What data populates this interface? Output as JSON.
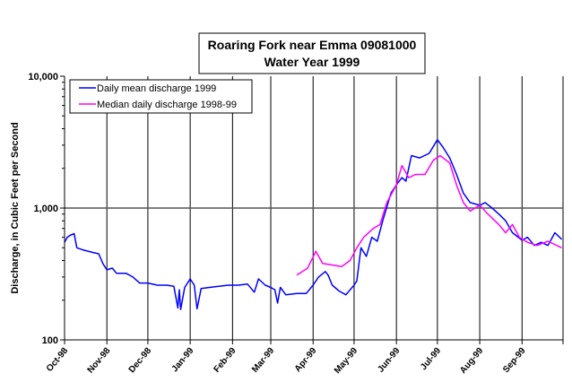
{
  "chart_data": {
    "type": "line",
    "title": "Roaring Fork near Emma 09081000",
    "subtitle": "Water Year 1999",
    "xlabel": "",
    "ylabel": "Discharge, in Cubic Feet per Second",
    "yscale": "log",
    "ylim": [
      100,
      10000
    ],
    "xlim": [
      "1998-10-01",
      "1999-09-30"
    ],
    "ytick_labels": [
      "100",
      "1,000",
      "10,000"
    ],
    "yticks": [
      100,
      1000,
      10000
    ],
    "xtick_labels": [
      "Oct-98",
      "Nov-98",
      "Dec-98",
      "Jan-99",
      "Feb-99",
      "Mar-99",
      "Apr-99",
      "May-99",
      "Jun-99",
      "Jul-99",
      "Aug-99",
      "Sep-99"
    ],
    "xticks": [
      "1998-10-01",
      "1998-11-01",
      "1998-12-01",
      "1999-01-01",
      "1999-02-01",
      "1999-03-01",
      "1999-04-01",
      "1999-05-01",
      "1999-06-01",
      "1999-07-01",
      "1999-08-01",
      "1999-09-01"
    ],
    "grid": {
      "vertical": true,
      "horizontal_major": true
    },
    "legend_position": "top-left",
    "series": [
      {
        "name": "Daily mean discharge 1999",
        "color": "#0000ff",
        "points": [
          [
            "1998-10-01",
            550
          ],
          [
            "1998-10-03",
            600
          ],
          [
            "1998-10-05",
            620
          ],
          [
            "1998-10-08",
            640
          ],
          [
            "1998-10-10",
            500
          ],
          [
            "1998-10-15",
            480
          ],
          [
            "1998-10-22",
            460
          ],
          [
            "1998-10-26",
            450
          ],
          [
            "1998-10-29",
            380
          ],
          [
            "1998-11-01",
            340
          ],
          [
            "1998-11-05",
            350
          ],
          [
            "1998-11-08",
            320
          ],
          [
            "1998-11-15",
            320
          ],
          [
            "1998-11-20",
            300
          ],
          [
            "1998-11-25",
            270
          ],
          [
            "1998-12-01",
            270
          ],
          [
            "1998-12-08",
            260
          ],
          [
            "1998-12-15",
            260
          ],
          [
            "1998-12-20",
            255
          ],
          [
            "1998-12-23",
            175
          ],
          [
            "1998-12-24",
            240
          ],
          [
            "1998-12-25",
            170
          ],
          [
            "1998-12-28",
            250
          ],
          [
            "1999-01-01",
            290
          ],
          [
            "1999-01-04",
            260
          ],
          [
            "1999-01-06",
            172
          ],
          [
            "1999-01-09",
            245
          ],
          [
            "1999-01-15",
            250
          ],
          [
            "1999-01-22",
            255
          ],
          [
            "1999-01-29",
            260
          ],
          [
            "1999-02-05",
            260
          ],
          [
            "1999-02-12",
            265
          ],
          [
            "1999-02-17",
            230
          ],
          [
            "1999-02-20",
            290
          ],
          [
            "1999-02-25",
            260
          ],
          [
            "1999-03-01",
            250
          ],
          [
            "1999-03-04",
            240
          ],
          [
            "1999-03-06",
            190
          ],
          [
            "1999-03-08",
            250
          ],
          [
            "1999-03-12",
            220
          ],
          [
            "1999-03-20",
            225
          ],
          [
            "1999-03-27",
            225
          ],
          [
            "1999-04-01",
            260
          ],
          [
            "1999-04-05",
            300
          ],
          [
            "1999-04-10",
            330
          ],
          [
            "1999-04-12",
            310
          ],
          [
            "1999-04-15",
            260
          ],
          [
            "1999-04-20",
            235
          ],
          [
            "1999-04-25",
            220
          ],
          [
            "1999-05-01",
            260
          ],
          [
            "1999-05-03",
            280
          ],
          [
            "1999-05-06",
            500
          ],
          [
            "1999-05-10",
            430
          ],
          [
            "1999-05-14",
            600
          ],
          [
            "1999-05-18",
            560
          ],
          [
            "1999-05-22",
            800
          ],
          [
            "1999-05-28",
            1300
          ],
          [
            "1999-06-01",
            1500
          ],
          [
            "1999-06-05",
            1700
          ],
          [
            "1999-06-08",
            1600
          ],
          [
            "1999-06-12",
            2500
          ],
          [
            "1999-06-18",
            2400
          ],
          [
            "1999-06-25",
            2600
          ],
          [
            "1999-07-01",
            3300
          ],
          [
            "1999-07-05",
            2900
          ],
          [
            "1999-07-10",
            2400
          ],
          [
            "1999-07-15",
            1800
          ],
          [
            "1999-07-20",
            1300
          ],
          [
            "1999-07-25",
            1100
          ],
          [
            "1999-08-01",
            1050
          ],
          [
            "1999-08-05",
            1100
          ],
          [
            "1999-08-10",
            1000
          ],
          [
            "1999-08-15",
            900
          ],
          [
            "1999-08-20",
            800
          ],
          [
            "1999-08-25",
            650
          ],
          [
            "1999-09-01",
            570
          ],
          [
            "1999-09-05",
            600
          ],
          [
            "1999-09-10",
            520
          ],
          [
            "1999-09-15",
            550
          ],
          [
            "1999-09-20",
            520
          ],
          [
            "1999-09-25",
            650
          ],
          [
            "1999-09-30",
            580
          ]
        ]
      },
      {
        "name": "Median daily discharge 1998-99",
        "color": "#ff00ff",
        "points": [
          [
            "1999-03-20",
            310
          ],
          [
            "1999-03-28",
            350
          ],
          [
            "1999-04-03",
            470
          ],
          [
            "1999-04-08",
            380
          ],
          [
            "1999-04-15",
            370
          ],
          [
            "1999-04-22",
            360
          ],
          [
            "1999-04-28",
            400
          ],
          [
            "1999-05-03",
            500
          ],
          [
            "1999-05-08",
            600
          ],
          [
            "1999-05-15",
            700
          ],
          [
            "1999-05-20",
            750
          ],
          [
            "1999-05-25",
            1100
          ],
          [
            "1999-06-01",
            1500
          ],
          [
            "1999-06-05",
            2100
          ],
          [
            "1999-06-10",
            1700
          ],
          [
            "1999-06-15",
            1800
          ],
          [
            "1999-06-22",
            1800
          ],
          [
            "1999-06-28",
            2300
          ],
          [
            "1999-07-03",
            2500
          ],
          [
            "1999-07-10",
            2200
          ],
          [
            "1999-07-15",
            1500
          ],
          [
            "1999-07-20",
            1100
          ],
          [
            "1999-07-25",
            950
          ],
          [
            "1999-08-01",
            1050
          ],
          [
            "1999-08-07",
            900
          ],
          [
            "1999-08-15",
            750
          ],
          [
            "1999-08-20",
            650
          ],
          [
            "1999-08-25",
            750
          ],
          [
            "1999-08-30",
            600
          ],
          [
            "1999-09-05",
            550
          ],
          [
            "1999-09-12",
            520
          ],
          [
            "1999-09-20",
            560
          ],
          [
            "1999-09-30",
            500
          ]
        ]
      }
    ]
  }
}
